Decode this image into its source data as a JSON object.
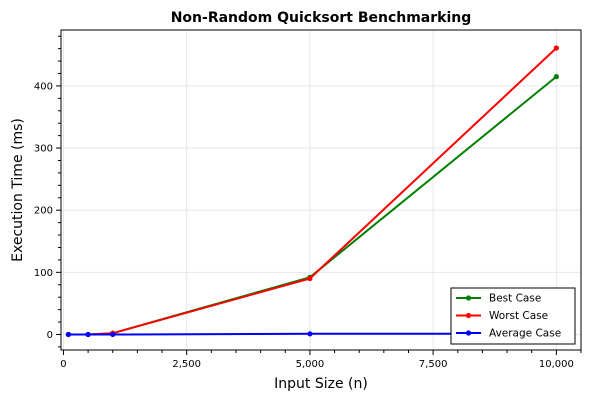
{
  "chart_data": {
    "type": "line",
    "title": "Non-Random Quicksort Benchmarking",
    "xlabel": "Input Size (n)",
    "ylabel": "Execution Time (ms)",
    "xlim": [
      -50,
      10500
    ],
    "ylim": [
      -25,
      490
    ],
    "xticks": [
      0,
      2500,
      5000,
      7500,
      10000
    ],
    "xtick_labels": [
      "0",
      "2,500",
      "5,000",
      "7,500",
      "10,000"
    ],
    "yticks": [
      0,
      100,
      200,
      300,
      400
    ],
    "ytick_labels": [
      "0",
      "100",
      "200",
      "300",
      "400"
    ],
    "grid": true,
    "legend_position": "bottom-right",
    "x": [
      100,
      500,
      1000,
      5000,
      10000
    ],
    "series": [
      {
        "name": "Best Case",
        "color": "#008000",
        "values": [
          0,
          0,
          2,
          92,
          415
        ]
      },
      {
        "name": "Worst Case",
        "color": "#ff0000",
        "values": [
          0,
          0,
          2,
          90,
          461
        ]
      },
      {
        "name": "Average Case",
        "color": "#0000ff",
        "values": [
          0,
          0,
          0,
          1,
          1
        ]
      }
    ]
  }
}
